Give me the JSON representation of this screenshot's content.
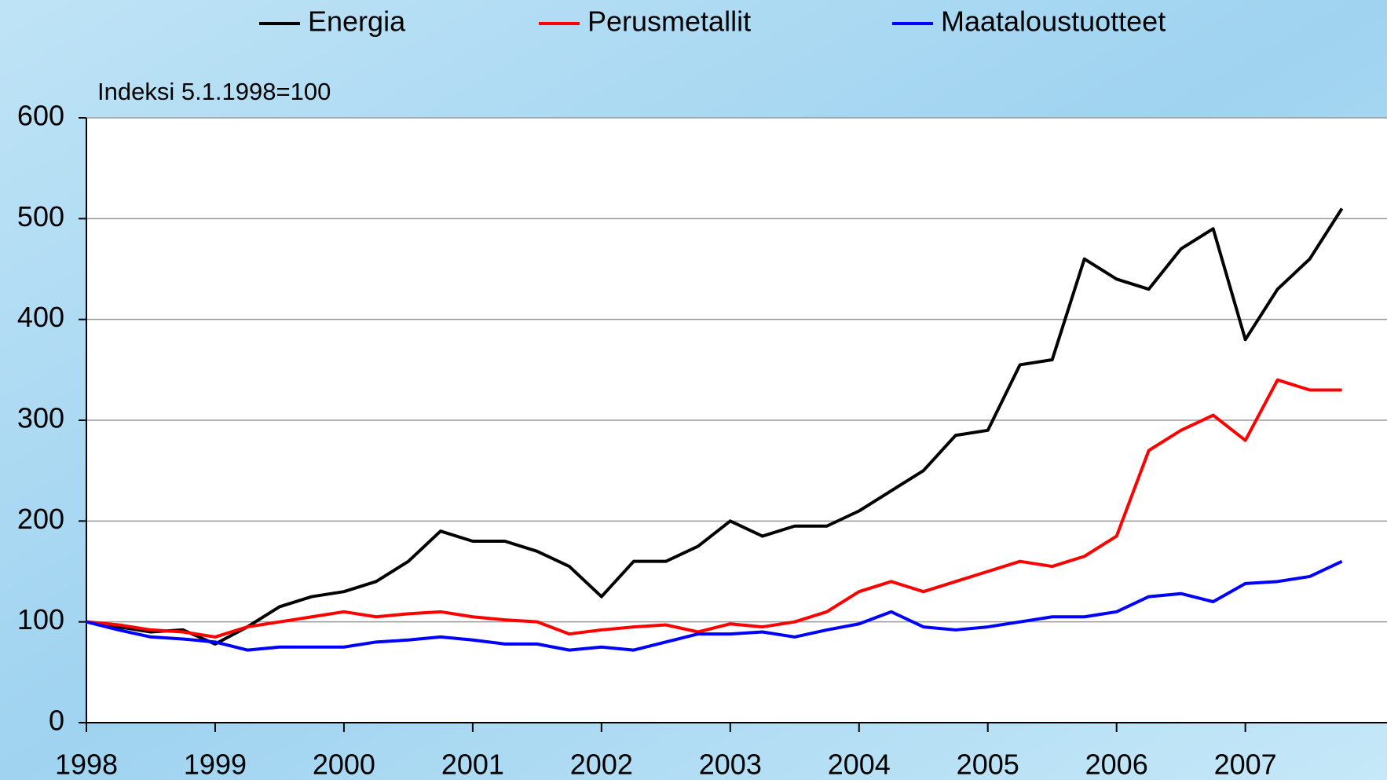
{
  "chart_data": {
    "type": "line",
    "annotation": "Indeksi 5.1.1998=100",
    "x": [
      1998,
      1998.25,
      1998.5,
      1998.75,
      1999,
      1999.25,
      1999.5,
      1999.75,
      2000,
      2000.25,
      2000.5,
      2000.75,
      2001,
      2001.25,
      2001.5,
      2001.75,
      2002,
      2002.25,
      2002.5,
      2002.75,
      2003,
      2003.25,
      2003.5,
      2003.75,
      2004,
      2004.25,
      2004.5,
      2004.75,
      2005,
      2005.25,
      2005.5,
      2005.75,
      2006,
      2006.25,
      2006.5,
      2006.75,
      2007,
      2007.25,
      2007.5,
      2007.75
    ],
    "series": [
      {
        "name": "Energia",
        "color": "#000000",
        "values": [
          100,
          95,
          90,
          92,
          78,
          95,
          115,
          125,
          130,
          140,
          160,
          190,
          180,
          180,
          170,
          155,
          125,
          160,
          160,
          175,
          200,
          185,
          195,
          195,
          210,
          230,
          250,
          285,
          290,
          355,
          360,
          460,
          440,
          430,
          470,
          490,
          380,
          430,
          460,
          510
        ]
      },
      {
        "name": "Perusmetallit",
        "color": "#ff0000",
        "values": [
          100,
          97,
          92,
          90,
          85,
          95,
          100,
          105,
          110,
          105,
          108,
          110,
          105,
          102,
          100,
          88,
          92,
          95,
          97,
          90,
          98,
          95,
          100,
          110,
          130,
          140,
          130,
          140,
          150,
          160,
          155,
          165,
          185,
          270,
          290,
          305,
          280,
          340,
          330,
          330
        ]
      },
      {
        "name": "Maataloustuotteet",
        "color": "#0000ff",
        "values": [
          100,
          92,
          85,
          83,
          80,
          72,
          75,
          75,
          75,
          80,
          82,
          85,
          82,
          78,
          78,
          72,
          75,
          72,
          80,
          88,
          88,
          90,
          85,
          92,
          98,
          110,
          95,
          92,
          95,
          100,
          105,
          105,
          110,
          125,
          128,
          120,
          138,
          140,
          145,
          160
        ]
      }
    ],
    "xlim": [
      1998,
      2008.1
    ],
    "xticks": [
      1998,
      1999,
      2000,
      2001,
      2002,
      2003,
      2004,
      2005,
      2006,
      2007
    ],
    "ylim": [
      0,
      600
    ],
    "yticks": [
      0,
      100,
      200,
      300,
      400,
      500,
      600
    ],
    "grid": true
  }
}
